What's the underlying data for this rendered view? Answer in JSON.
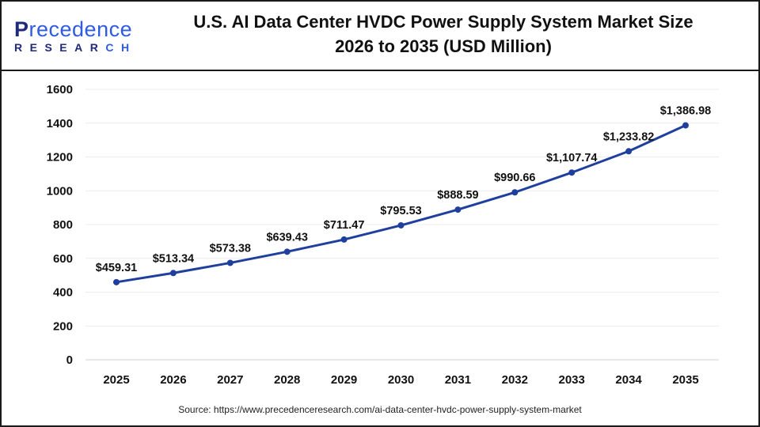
{
  "brand": {
    "line1": "Precedence",
    "line2": "RESEARCH"
  },
  "title_line1": "U.S. AI Data Center HVDC Power Supply System Market Size",
  "title_line2": "2026 to 2035 (USD Million)",
  "source": "Source: https://www.precedenceresearch.com/ai-data-center-hvdc-power-supply-system-market",
  "chart_data": {
    "type": "line",
    "title": "U.S. AI Data Center HVDC Power Supply System Market Size 2026 to 2035 (USD Million)",
    "categories": [
      "2025",
      "2026",
      "2027",
      "2028",
      "2029",
      "2030",
      "2031",
      "2032",
      "2033",
      "2034",
      "2035"
    ],
    "values": [
      459.31,
      513.34,
      573.38,
      639.43,
      711.47,
      795.53,
      888.59,
      990.66,
      1107.74,
      1233.82,
      1386.98
    ],
    "data_labels": [
      "$459.31",
      "$513.34",
      "$573.38",
      "$639.43",
      "$711.47",
      "$795.53",
      "$888.59",
      "$990.66",
      "$1,107.74",
      "$1,233.82",
      "$1,386.98"
    ],
    "yticks": [
      0,
      200,
      400,
      600,
      800,
      1000,
      1200,
      1400,
      1600
    ],
    "ylim": [
      0,
      1600
    ],
    "grid": true,
    "line_color": "#1f3f9e",
    "xlabel": "",
    "ylabel": ""
  }
}
